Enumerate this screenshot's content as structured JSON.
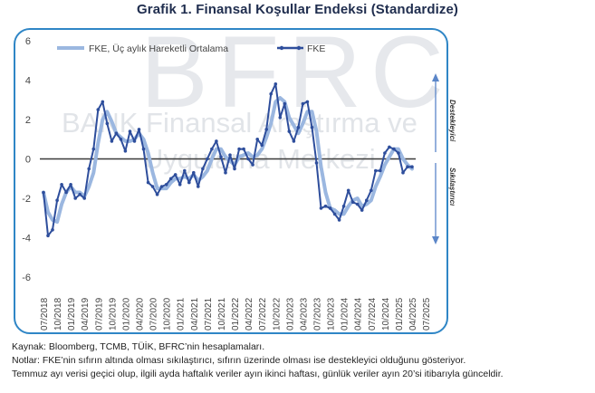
{
  "header": {
    "title": "Grafik 1. Finansal Koşullar Endeksi (Standardize)"
  },
  "watermark": {
    "logo": "BFRC",
    "line1": "BANK Finansal Araştırma ve",
    "line2": "Uygulama Merkezi"
  },
  "side_labels": {
    "top": "Destekleyici",
    "bottom": "Sıkılaştırıcı"
  },
  "colors": {
    "fke": "#2e4e9c",
    "ma": "#9bb7e0",
    "frame": "#2f86c6",
    "arrow": "#5b86c8",
    "watermark": "#c5cad3"
  },
  "chart_data": {
    "type": "line",
    "title": "Grafik 1. Finansal Koşullar Endeksi (Standardize)",
    "ylim": [
      -6,
      6
    ],
    "yticks": [
      6,
      4,
      2,
      0,
      -2,
      -4,
      -6
    ],
    "grid": false,
    "legend_position": "top",
    "x_tick_labels": [
      "07/2018",
      "10/2018",
      "01/2019",
      "04/2019",
      "07/2019",
      "10/2019",
      "01/2020",
      "04/2020",
      "07/2020",
      "10/2020",
      "01/2021",
      "04/2021",
      "07/2021",
      "10/2021",
      "01/2022",
      "04/2022",
      "07/2022",
      "10/2022",
      "01/2023",
      "04/2023",
      "07/2023",
      "10/2023",
      "01/2024",
      "04/2024",
      "07/2024",
      "10/2024",
      "01/2025",
      "04/2025",
      "07/2025"
    ],
    "x_start": "2018-07",
    "series": [
      {
        "name": "FKE",
        "values": [
          -1.7,
          -3.9,
          -3.6,
          -2.1,
          -1.3,
          -1.7,
          -1.3,
          -2.0,
          -1.8,
          -2.0,
          -0.5,
          0.5,
          2.5,
          2.9,
          1.8,
          0.9,
          1.3,
          1.0,
          0.4,
          1.4,
          0.9,
          1.5,
          0.5,
          -1.2,
          -1.4,
          -1.8,
          -1.4,
          -1.3,
          -1.0,
          -0.8,
          -1.3,
          -0.6,
          -1.2,
          -0.7,
          -1.4,
          -0.5,
          0.0,
          0.5,
          0.9,
          0.1,
          -0.7,
          0.2,
          -0.5,
          0.5,
          0.5,
          0.0,
          -0.3,
          1.0,
          0.7,
          1.5,
          3.3,
          3.8,
          2.1,
          2.8,
          1.4,
          0.9,
          1.6,
          2.8,
          2.9,
          1.6,
          -0.2,
          -2.5,
          -2.4,
          -2.5,
          -2.8,
          -3.1,
          -2.4,
          -1.6,
          -2.2,
          -2.3,
          -2.6,
          -2.1,
          -1.6,
          -0.6,
          -0.6,
          0.3,
          0.6,
          0.5,
          0.3,
          -0.7,
          -0.4,
          -0.4
        ]
      },
      {
        "name": "FKE, Üç aylık Hareketli Ortalama",
        "values": [
          -1.7,
          -2.7,
          -3.1,
          -3.2,
          -2.3,
          -1.7,
          -1.4,
          -1.7,
          -1.7,
          -1.9,
          -1.4,
          -0.7,
          0.8,
          2.0,
          2.4,
          1.9,
          1.3,
          1.1,
          0.9,
          0.9,
          1.0,
          1.3,
          1.0,
          0.3,
          -0.7,
          -1.5,
          -1.5,
          -1.5,
          -1.2,
          -1.0,
          -1.0,
          -0.9,
          -1.0,
          -0.8,
          -1.1,
          -0.9,
          -0.6,
          0.0,
          0.5,
          0.5,
          0.1,
          -0.1,
          -0.3,
          0.1,
          0.2,
          0.3,
          0.1,
          0.2,
          0.5,
          1.1,
          1.8,
          2.9,
          3.1,
          2.9,
          2.1,
          1.7,
          1.3,
          1.8,
          2.4,
          2.4,
          1.4,
          -0.4,
          -1.7,
          -2.5,
          -2.6,
          -2.8,
          -2.8,
          -2.4,
          -2.1,
          -2.0,
          -2.4,
          -2.3,
          -2.1,
          -1.4,
          -0.9,
          -0.3,
          0.1,
          0.5,
          0.5,
          0.0,
          -0.3,
          -0.5
        ]
      }
    ]
  },
  "notes": [
    "Kaynak: Bloomberg, TCMB, TÜİK, BFRC’nin hesaplamaları.",
    "Notlar: FKE’nin sıfırın altında olması sıkılaştırıcı, sıfırın üzerinde olması ise destekleyici olduğunu gösteriyor.",
    "Temmuz ayı verisi geçici olup, ilgili ayda haftalık veriler ayın ikinci haftası, günlük veriler ayın 20’si itibarıyla günceldir."
  ]
}
